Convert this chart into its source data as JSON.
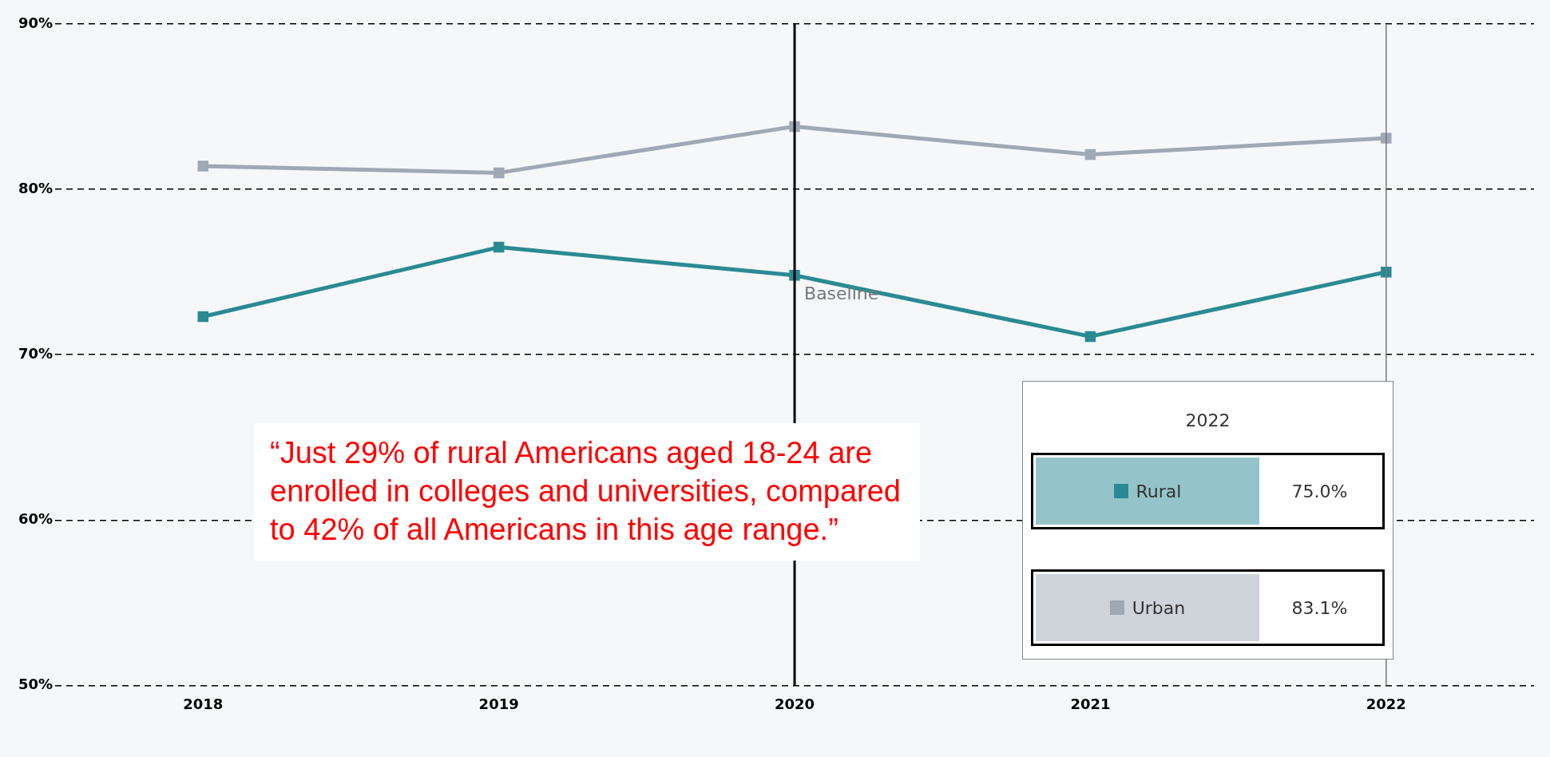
{
  "chart_data": {
    "type": "line",
    "categories": [
      "2018",
      "2019",
      "2020",
      "2021",
      "2022"
    ],
    "series": [
      {
        "name": "Urban",
        "color": "#a0a8b5",
        "values": [
          81.4,
          81.0,
          83.8,
          82.1,
          83.1
        ]
      },
      {
        "name": "Rural",
        "color": "#2a8a93",
        "values": [
          72.3,
          76.5,
          74.8,
          71.1,
          75.0
        ]
      }
    ],
    "ylim": [
      50,
      90
    ],
    "yticks": [
      {
        "value": 50,
        "label": "50%"
      },
      {
        "value": 60,
        "label": "60%"
      },
      {
        "value": 70,
        "label": "70%"
      },
      {
        "value": 80,
        "label": "80%"
      },
      {
        "value": 90,
        "label": "90%"
      }
    ],
    "grid": "y",
    "marker": "square",
    "line_style": "solid",
    "legend": "bottom right",
    "legend_title": "2022",
    "ref_lines": [
      {
        "axis": "x",
        "value": "2020",
        "label": "Baseline",
        "color": "#000000"
      },
      {
        "axis": "x",
        "value": "2022",
        "label": null,
        "color": "#777777"
      }
    ],
    "annotations": [
      "“Just 29% of rural Americans aged 18-24 are enrolled in colleges and universities, compared to 42% of all Americans in this age range.”",
      "75.0%",
      "83.1%"
    ]
  }
}
